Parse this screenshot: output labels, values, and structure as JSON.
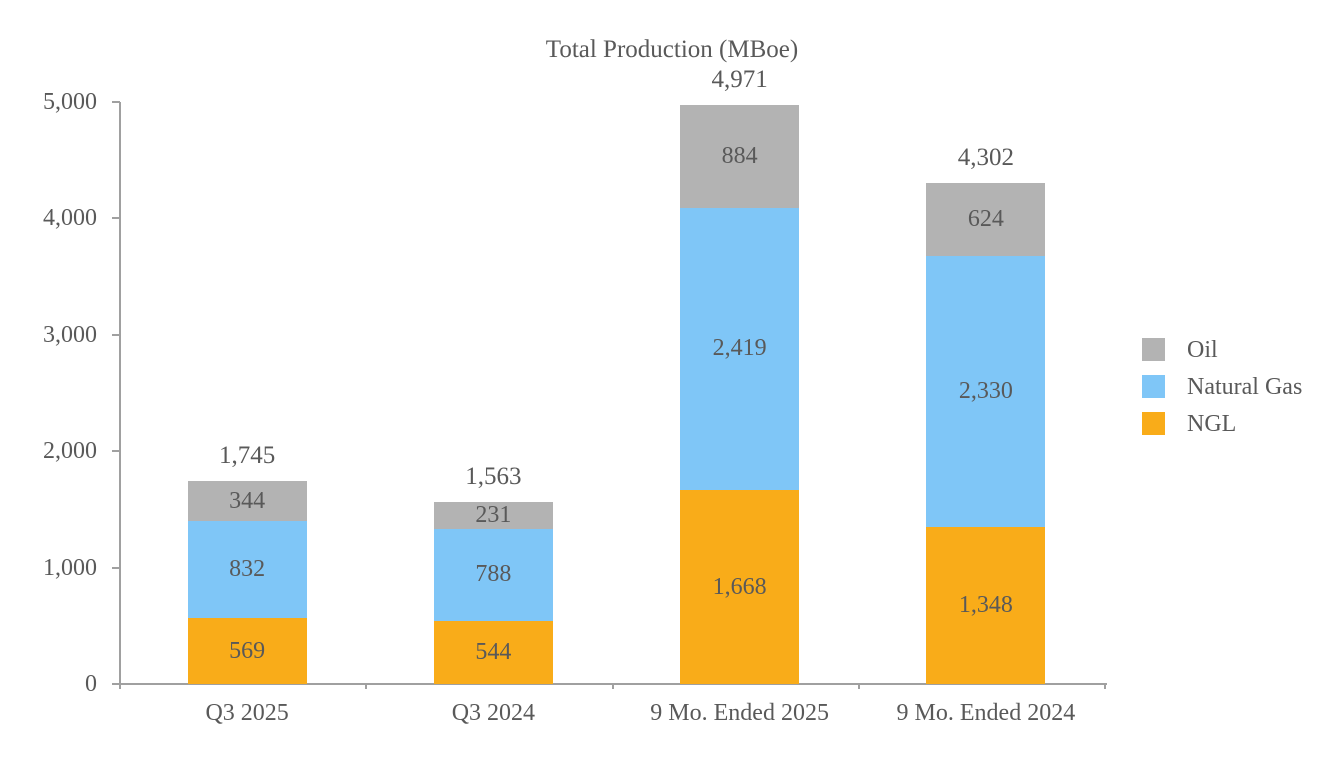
{
  "chart_data": {
    "type": "bar",
    "stacked": true,
    "title": "Total Production (MBoe)",
    "categories": [
      "Q3 2025",
      "Q3 2024",
      "9 Mo. Ended 2025",
      "9 Mo. Ended 2024"
    ],
    "series": [
      {
        "name": "NGL",
        "color": "#F9AC19",
        "values": [
          569,
          544,
          1668,
          1348
        ]
      },
      {
        "name": "Natural Gas",
        "color": "#7FC6F7",
        "values": [
          832,
          788,
          2419,
          2330
        ]
      },
      {
        "name": "Oil",
        "color": "#B3B3B3",
        "values": [
          344,
          231,
          884,
          624
        ]
      }
    ],
    "totals": [
      1745,
      1563,
      4971,
      4302
    ],
    "ylim": [
      0,
      5000
    ],
    "yticks": [
      0,
      1000,
      2000,
      3000,
      4000,
      5000
    ],
    "ytick_labels": [
      "0",
      "1,000",
      "2,000",
      "3,000",
      "4,000",
      "5,000"
    ],
    "legend": {
      "position": "right",
      "entries": [
        {
          "label": "Oil",
          "color": "#B3B3B3"
        },
        {
          "label": "Natural Gas",
          "color": "#7FC6F7"
        },
        {
          "label": "NGL",
          "color": "#F9AC19"
        }
      ]
    },
    "grid": false,
    "text_color": "#595959",
    "axis_color": "#A0A0A0",
    "value_label_format": "thousands-comma"
  }
}
